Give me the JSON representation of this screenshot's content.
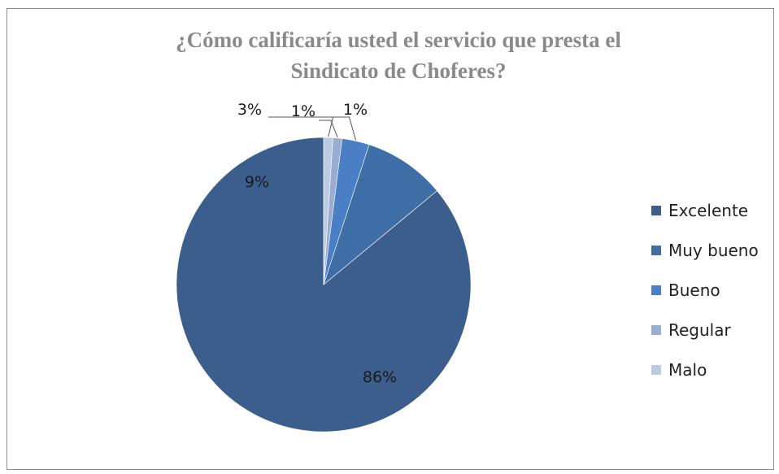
{
  "chart_data": {
    "type": "pie",
    "title_lines": [
      "¿Cómo calificaría usted el servicio que presta el",
      "Sindicato  de Choferes?"
    ],
    "categories": [
      "Excelente",
      "Muy bueno",
      "Bueno",
      "Regular",
      "Malo"
    ],
    "values": [
      86,
      9,
      3,
      1,
      1
    ],
    "data_labels": [
      "86%",
      "9%",
      "3%",
      "1%",
      "1%"
    ],
    "colors": [
      "#3b5e8c",
      "#3f6ea6",
      "#4a7fc6",
      "#9aacd2",
      "#bccbe4"
    ],
    "legend_position": "right"
  }
}
